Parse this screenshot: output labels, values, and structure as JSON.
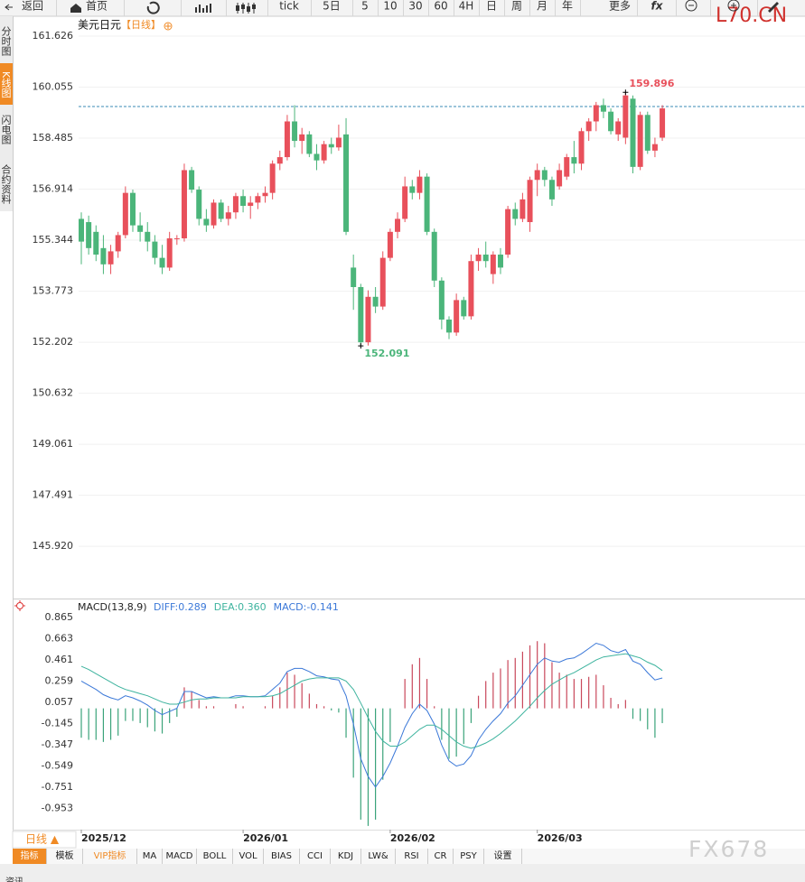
{
  "toolbar": [
    "返回",
    "首页",
    "tick",
    "5日",
    "5",
    "10",
    "30",
    "60",
    "4H",
    "日",
    "周",
    "月",
    "年",
    "更多",
    "fx"
  ],
  "sidebar": [
    "分时图",
    "K线图",
    "闪电图",
    "合约资料"
  ],
  "watermarks": [
    "L70.CN",
    "FX678"
  ],
  "period_selector": "日线 ▲",
  "tabs": [
    "指标",
    "模板",
    "VIP指标",
    "MA",
    "MACD",
    "BOLL",
    "VOL",
    "BIAS",
    "CCI",
    "KDJ",
    "LW&",
    "RSI",
    "CR",
    "PSY",
    "设置"
  ],
  "footer": "资讯",
  "chart_data": [
    {
      "type": "candlestick",
      "title": "美元日元",
      "subtitle": "【日线】",
      "categories": [
        "2025/12",
        null,
        null,
        null,
        null,
        null,
        null,
        null,
        null,
        null,
        null,
        null,
        null,
        null,
        null,
        null,
        null,
        null,
        null,
        null,
        null,
        null,
        "2026/01",
        null,
        null,
        null,
        null,
        null,
        null,
        null,
        null,
        null,
        null,
        null,
        null,
        null,
        null,
        null,
        null,
        null,
        null,
        null,
        "2026/02",
        null,
        null,
        null,
        null,
        null,
        null,
        null,
        null,
        null,
        null,
        null,
        null,
        null,
        null,
        null,
        null,
        null,
        null,
        null,
        "2026/03",
        null,
        null,
        null,
        null,
        null,
        null,
        null,
        null,
        null,
        null,
        null,
        null,
        null,
        null,
        null,
        null,
        null
      ],
      "open": [
        156.0,
        155.9,
        155.6,
        155.1,
        154.6,
        155.0,
        155.5,
        156.8,
        155.8,
        155.6,
        155.3,
        154.8,
        154.5,
        155.4,
        155.4,
        157.5,
        156.9,
        156.0,
        155.8,
        156.5,
        156.0,
        156.2,
        156.7,
        156.4,
        156.5,
        156.7,
        156.8,
        157.7,
        157.9,
        159.0,
        158.4,
        158.6,
        158.0,
        157.8,
        158.3,
        158.2,
        158.6,
        154.5,
        153.9,
        152.2,
        153.6,
        153.3,
        154.8,
        155.6,
        156.0,
        157.0,
        156.8,
        157.3,
        155.6,
        154.1,
        152.9,
        152.5,
        153.5,
        153.0,
        154.7,
        154.9,
        154.3,
        154.9,
        154.9,
        156.3,
        156.0,
        155.9,
        157.2,
        157.5,
        157.2,
        157.0,
        157.3,
        157.9,
        157.7,
        158.7,
        159.0,
        159.5,
        159.3,
        158.6,
        158.5,
        159.7,
        157.6,
        159.2,
        158.1,
        158.5
      ],
      "high": [
        156.2,
        156.1,
        155.8,
        155.5,
        155.2,
        155.6,
        157.0,
        156.9,
        156.2,
        155.9,
        155.5,
        155.2,
        155.6,
        155.5,
        157.7,
        157.6,
        157.0,
        156.3,
        156.6,
        156.6,
        156.4,
        156.8,
        156.9,
        156.7,
        156.8,
        157.0,
        157.8,
        158.1,
        159.2,
        159.5,
        158.8,
        158.7,
        158.3,
        158.4,
        158.5,
        158.9,
        159.1,
        154.9,
        154.0,
        153.8,
        153.9,
        155.0,
        155.7,
        156.2,
        157.3,
        157.2,
        157.5,
        157.4,
        155.7,
        154.2,
        153.0,
        153.7,
        153.6,
        154.9,
        155.1,
        155.3,
        155.0,
        155.1,
        156.4,
        156.5,
        156.8,
        157.3,
        157.7,
        157.6,
        157.3,
        157.7,
        158.0,
        158.4,
        158.8,
        159.1,
        159.6,
        159.7,
        159.4,
        159.1,
        159.896,
        159.8,
        159.3,
        159.3,
        158.5,
        159.5
      ],
      "low": [
        154.6,
        154.9,
        154.7,
        154.3,
        154.3,
        154.8,
        155.4,
        155.6,
        155.3,
        155.0,
        154.6,
        154.3,
        154.4,
        155.2,
        155.3,
        156.8,
        155.8,
        155.6,
        155.7,
        155.9,
        155.8,
        156.0,
        156.2,
        156.0,
        156.3,
        156.5,
        156.6,
        157.5,
        157.8,
        158.2,
        158.0,
        157.9,
        157.5,
        157.7,
        158.0,
        158.1,
        155.5,
        153.2,
        152.091,
        152.1,
        153.1,
        153.2,
        154.7,
        155.4,
        155.9,
        156.6,
        156.6,
        155.5,
        153.9,
        152.6,
        152.3,
        152.4,
        152.9,
        152.9,
        154.4,
        154.5,
        154.0,
        154.3,
        154.8,
        155.8,
        155.9,
        155.6,
        156.7,
        157.0,
        156.4,
        156.9,
        157.2,
        157.4,
        157.5,
        158.4,
        158.7,
        159.1,
        158.6,
        158.4,
        158.3,
        157.4,
        157.5,
        158.0,
        157.9,
        158.4
      ],
      "close": [
        155.3,
        155.1,
        154.9,
        154.6,
        155.0,
        155.5,
        156.8,
        155.8,
        155.6,
        155.3,
        154.8,
        154.5,
        155.4,
        155.4,
        157.5,
        156.9,
        156.0,
        155.8,
        156.5,
        156.0,
        156.2,
        156.7,
        156.4,
        156.5,
        156.7,
        156.8,
        157.7,
        157.9,
        159.0,
        158.4,
        158.6,
        158.0,
        157.8,
        158.3,
        158.2,
        158.5,
        155.6,
        153.9,
        152.2,
        153.6,
        153.3,
        154.8,
        155.6,
        156.0,
        157.0,
        156.8,
        157.3,
        155.6,
        154.1,
        152.9,
        152.5,
        153.5,
        153.0,
        154.7,
        154.9,
        154.7,
        154.9,
        154.5,
        156.3,
        156.0,
        156.6,
        157.2,
        157.5,
        157.2,
        156.6,
        157.5,
        157.9,
        157.7,
        158.7,
        159.0,
        159.5,
        159.3,
        158.7,
        159.0,
        159.8,
        157.6,
        159.2,
        158.1,
        158.3,
        159.4
      ],
      "up_color": "#e8505b",
      "down_color": "#4bb57a",
      "price_line": 159.46,
      "price_line_color": "#3a8bb5",
      "annotations": [
        {
          "label": "159.896",
          "value": 159.896,
          "color": "#e8505b"
        },
        {
          "label": "152.091",
          "value": 152.091,
          "color": "#4bb57a"
        }
      ],
      "ylim": [
        144.395,
        161.765
      ],
      "yticks": [
        161.626,
        160.055,
        158.485,
        156.914,
        155.344,
        153.773,
        152.202,
        150.632,
        149.061,
        147.491,
        {
          "value": 145.92,
          "label": "145.920"
        }
      ],
      "grid": true
    },
    {
      "type": "macd",
      "title": "MACD(13,8,9)",
      "legend": [
        "DIFF:0.289",
        "DEA:0.360",
        "MACD:-0.141"
      ],
      "series": [
        {
          "name": "DIFF",
          "color": "#3b78d8",
          "values": [
            0.26,
            0.22,
            0.18,
            0.13,
            0.1,
            0.08,
            0.12,
            0.1,
            0.07,
            0.03,
            -0.02,
            -0.06,
            -0.03,
            0.0,
            0.16,
            0.16,
            0.13,
            0.1,
            0.11,
            0.1,
            0.1,
            0.12,
            0.12,
            0.11,
            0.11,
            0.12,
            0.18,
            0.24,
            0.35,
            0.38,
            0.38,
            0.35,
            0.31,
            0.3,
            0.28,
            0.27,
            0.12,
            -0.15,
            -0.48,
            -0.65,
            -0.75,
            -0.65,
            -0.52,
            -0.36,
            -0.18,
            -0.05,
            0.04,
            -0.02,
            -0.15,
            -0.35,
            -0.5,
            -0.55,
            -0.53,
            -0.45,
            -0.3,
            -0.2,
            -0.12,
            -0.05,
            0.05,
            0.12,
            0.22,
            0.32,
            0.42,
            0.48,
            0.45,
            0.44,
            0.47,
            0.48,
            0.52,
            0.57,
            0.62,
            0.6,
            0.55,
            0.53,
            0.56,
            0.45,
            0.42,
            0.34,
            0.27,
            0.289
          ]
        },
        {
          "name": "DEA",
          "color": "#3db39e",
          "values": [
            0.4,
            0.37,
            0.33,
            0.29,
            0.25,
            0.21,
            0.18,
            0.16,
            0.14,
            0.12,
            0.09,
            0.06,
            0.04,
            0.04,
            0.06,
            0.08,
            0.09,
            0.09,
            0.1,
            0.1,
            0.1,
            0.1,
            0.11,
            0.11,
            0.11,
            0.11,
            0.12,
            0.14,
            0.18,
            0.22,
            0.26,
            0.28,
            0.29,
            0.29,
            0.29,
            0.29,
            0.26,
            0.18,
            0.05,
            -0.09,
            -0.22,
            -0.31,
            -0.36,
            -0.36,
            -0.32,
            -0.26,
            -0.2,
            -0.16,
            -0.16,
            -0.2,
            -0.26,
            -0.32,
            -0.36,
            -0.38,
            -0.36,
            -0.33,
            -0.29,
            -0.24,
            -0.18,
            -0.12,
            -0.05,
            0.02,
            0.1,
            0.17,
            0.23,
            0.27,
            0.31,
            0.34,
            0.38,
            0.42,
            0.46,
            0.49,
            0.5,
            0.51,
            0.52,
            0.5,
            0.48,
            0.44,
            0.41,
            0.36
          ]
        }
      ],
      "macd": [
        -0.28,
        -0.3,
        -0.3,
        -0.32,
        -0.3,
        -0.26,
        -0.12,
        -0.12,
        -0.14,
        -0.18,
        -0.22,
        -0.24,
        -0.14,
        -0.08,
        0.2,
        0.16,
        0.08,
        0.02,
        0.02,
        0,
        0,
        0.04,
        0.02,
        0,
        0,
        0.02,
        0.12,
        0.2,
        0.34,
        0.32,
        0.24,
        0.14,
        0.04,
        0.02,
        -0.02,
        -0.04,
        -0.28,
        -0.66,
        -1.06,
        -1.12,
        -1.06,
        -0.68,
        -0.32,
        0,
        0.28,
        0.42,
        0.48,
        0.28,
        0.02,
        -0.3,
        -0.48,
        -0.46,
        -0.34,
        -0.14,
        0.12,
        0.26,
        0.34,
        0.38,
        0.46,
        0.48,
        0.54,
        0.6,
        0.64,
        0.62,
        0.44,
        0.34,
        0.32,
        0.28,
        0.28,
        0.3,
        0.32,
        0.22,
        0.1,
        0.04,
        0.08,
        -0.1,
        -0.12,
        -0.2,
        -0.28,
        -0.141
      ],
      "up_color": "#c9485b",
      "down_color": "#3aa37a",
      "legend_colors": [
        "#3b78d8",
        "#3db39e",
        "#3b78d8"
      ],
      "ylim": [
        -1.164,
        1.003
      ],
      "yticks": [
        0.865,
        0.663,
        0.461,
        0.259,
        0.057,
        -0.145,
        -0.347,
        -0.549,
        -0.751,
        -0.953
      ]
    }
  ]
}
